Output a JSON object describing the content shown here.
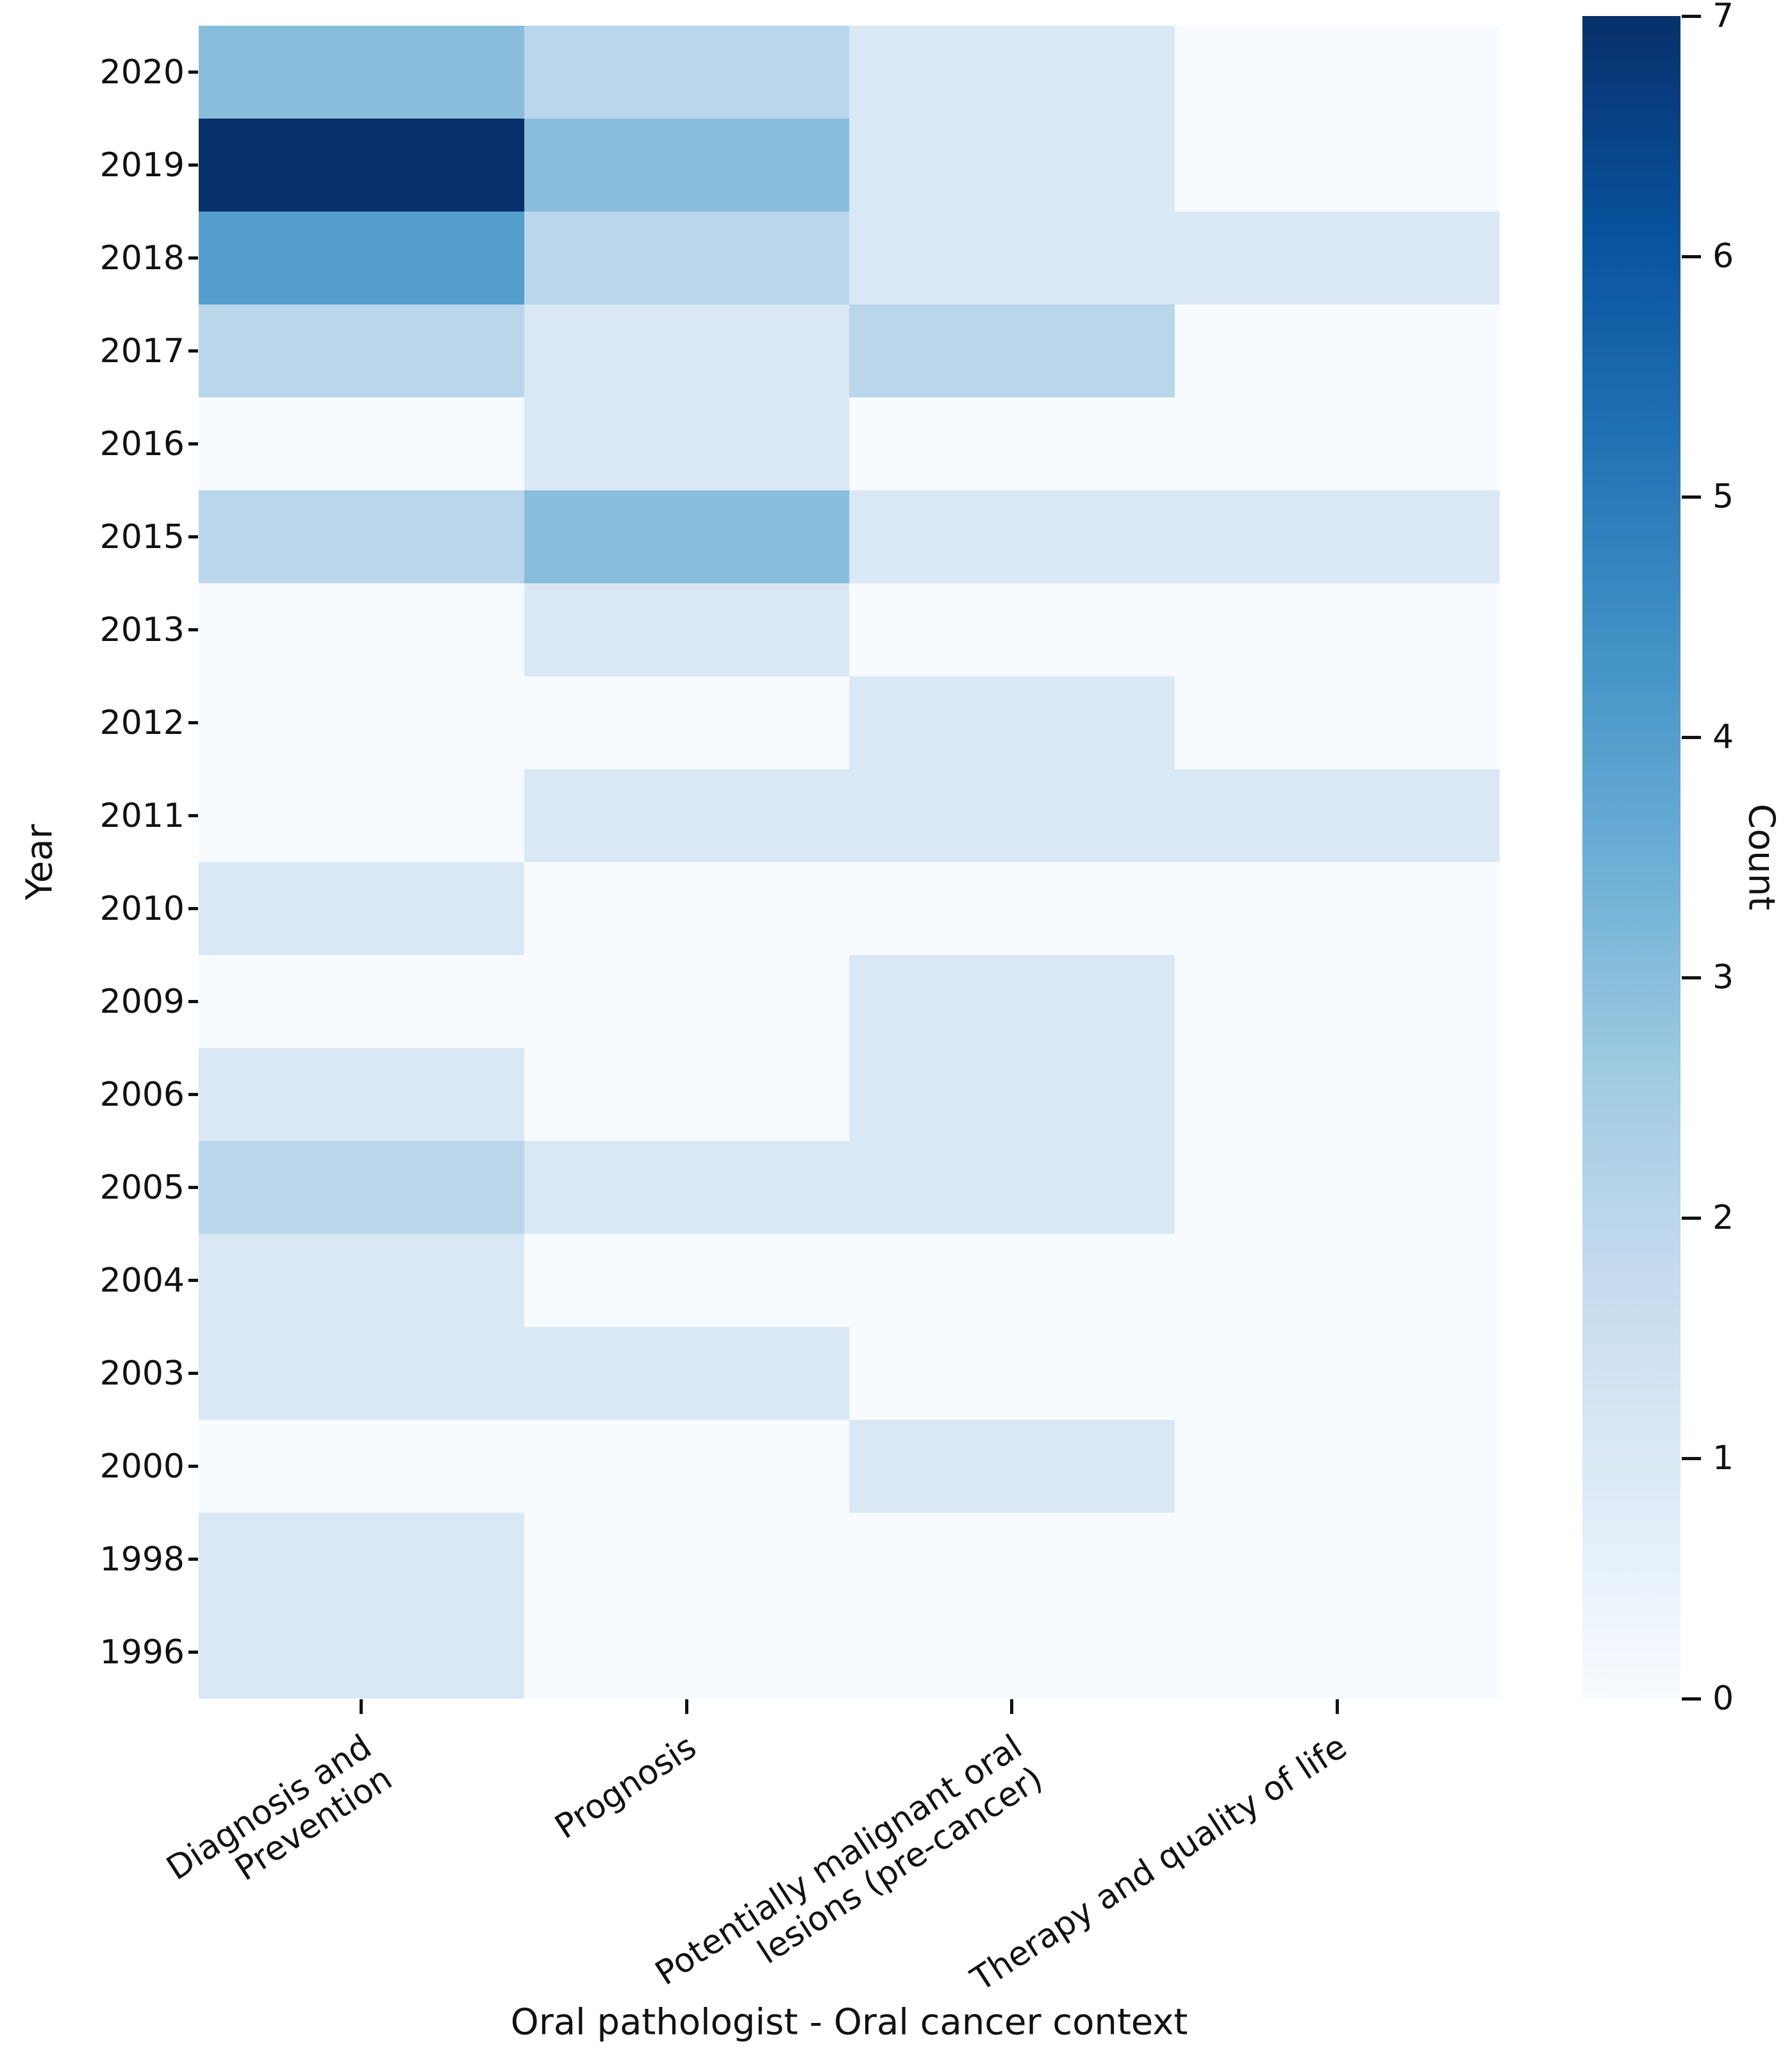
{
  "chart_data": {
    "type": "heatmap",
    "title": "",
    "xlabel": "Oral pathologist - Oral cancer context",
    "ylabel": "Year",
    "colorbar_label": "Count",
    "colorbar_ticks": [
      7,
      6,
      5,
      4,
      3,
      2,
      1,
      0
    ],
    "vmin": 0,
    "vmax": 7,
    "colormap": "Blues",
    "grid": false,
    "legend_position": "right-colorbar",
    "categories": [
      {
        "label_lines": [
          "Diagnosis and",
          "Prevention"
        ]
      },
      {
        "label_lines": [
          "Prognosis"
        ]
      },
      {
        "label_lines": [
          "Potentially malignant oral",
          "lesions (pre-cancer)"
        ]
      },
      {
        "label_lines": [
          "Therapy and quality of life"
        ]
      }
    ],
    "rows": [
      "2020",
      "2019",
      "2018",
      "2017",
      "2016",
      "2015",
      "2013",
      "2012",
      "2011",
      "2010",
      "2009",
      "2006",
      "2005",
      "2004",
      "2003",
      "2000",
      "1998",
      "1996"
    ],
    "values": [
      [
        3,
        2,
        1,
        0
      ],
      [
        7,
        3,
        1,
        0
      ],
      [
        4,
        2,
        1,
        1
      ],
      [
        2,
        1,
        2,
        0
      ],
      [
        0,
        1,
        0,
        0
      ],
      [
        2,
        3,
        1,
        1
      ],
      [
        0,
        1,
        0,
        0
      ],
      [
        0,
        0,
        1,
        0
      ],
      [
        0,
        1,
        1,
        1
      ],
      [
        1,
        0,
        0,
        0
      ],
      [
        0,
        0,
        1,
        0
      ],
      [
        1,
        0,
        1,
        0
      ],
      [
        2,
        1,
        1,
        0
      ],
      [
        1,
        0,
        0,
        0
      ],
      [
        1,
        1,
        0,
        0
      ],
      [
        0,
        0,
        1,
        0
      ],
      [
        1,
        0,
        0,
        0
      ],
      [
        1,
        0,
        0,
        0
      ]
    ],
    "value_palette": [
      "#f7fbff",
      "#dae8f6",
      "#bad6eb",
      "#88bedc",
      "#549ecd",
      "#2a7ab9",
      "#0c55a0",
      "#08306b"
    ],
    "colorbar_gradient_top_to_bottom": [
      "#08306b",
      "#08519c",
      "#2171b5",
      "#4292c6",
      "#6baed6",
      "#9ecae1",
      "#c6dbef",
      "#deebf7",
      "#f7fbff"
    ],
    "text_color": "#111111",
    "background_color": "#ffffff"
  }
}
